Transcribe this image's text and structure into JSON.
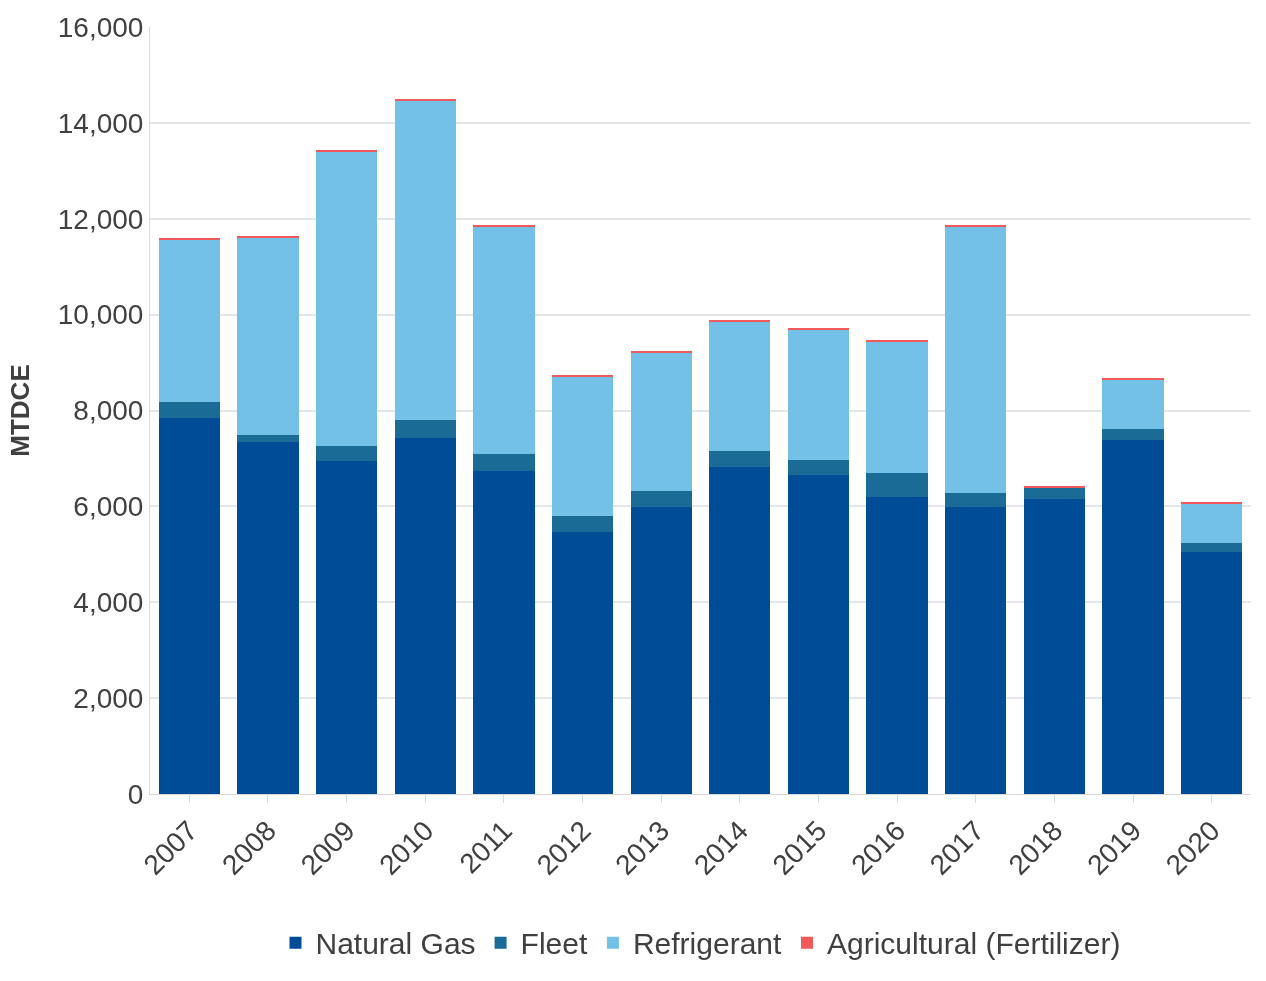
{
  "chart_data": {
    "type": "bar",
    "stacked": true,
    "ylabel": "MTDCE",
    "categories": [
      "2007",
      "2008",
      "2009",
      "2010",
      "2011",
      "2012",
      "2013",
      "2014",
      "2015",
      "2016",
      "2017",
      "2018",
      "2019",
      "2020"
    ],
    "series": [
      {
        "name": "Natural Gas",
        "color": "#004c97",
        "values": [
          7850,
          7340,
          6950,
          7420,
          6740,
          5470,
          5980,
          6820,
          6660,
          6190,
          5980,
          6150,
          7380,
          5040
        ]
      },
      {
        "name": "Fleet",
        "color": "#1a6b96",
        "values": [
          330,
          140,
          300,
          390,
          350,
          330,
          350,
          330,
          310,
          510,
          290,
          240,
          240,
          190
        ]
      },
      {
        "name": "Refrigerant",
        "color": "#74c1e8",
        "values": [
          3380,
          4120,
          6150,
          6660,
          4750,
          2910,
          2890,
          2710,
          2720,
          2730,
          5570,
          0,
          1030,
          840
        ]
      },
      {
        "name": "Agricultural (Fertilizer)",
        "color": "#f05a5a",
        "values": [
          30,
          20,
          30,
          30,
          30,
          20,
          20,
          20,
          20,
          20,
          30,
          20,
          20,
          10
        ]
      }
    ],
    "ylim": [
      0,
      16000
    ],
    "yticks": [
      {
        "value": 0,
        "label": "0"
      },
      {
        "value": 2000,
        "label": "2,000"
      },
      {
        "value": 4000,
        "label": "4,000"
      },
      {
        "value": 6000,
        "label": "6,000"
      },
      {
        "value": 8000,
        "label": "8,000"
      },
      {
        "value": 10000,
        "label": "10,000"
      },
      {
        "value": 12000,
        "label": "12,000"
      },
      {
        "value": 14000,
        "label": "14,000"
      },
      {
        "value": 16000,
        "label": "16,000"
      }
    ],
    "grid": "y",
    "legend": "bottom"
  }
}
